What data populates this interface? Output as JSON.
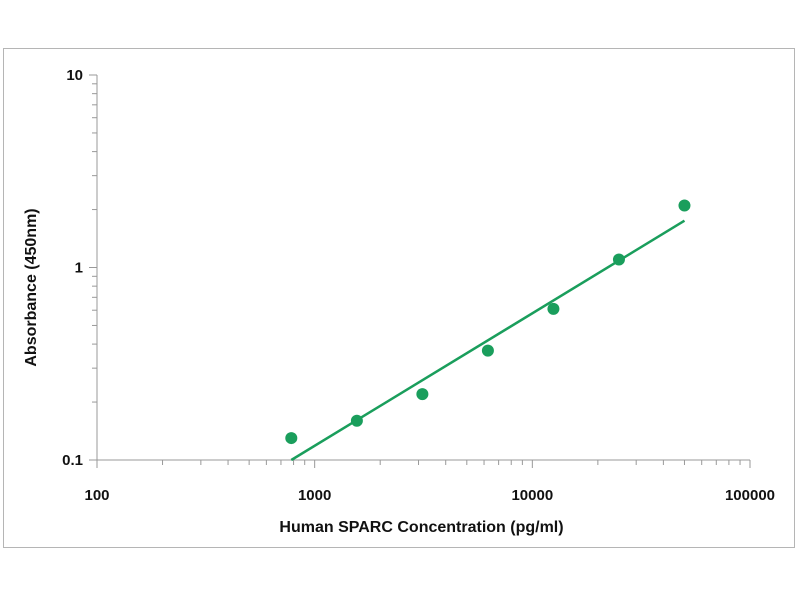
{
  "chart_data": {
    "type": "scatter",
    "title": "",
    "xlabel": "Human SPARC Concentration (pg/ml)",
    "ylabel": "Absorbance (450nm)",
    "x_scale": "log",
    "y_scale": "log",
    "xlim": [
      100,
      100000
    ],
    "ylim": [
      0.1,
      10
    ],
    "x_ticks": [
      "100",
      "1000",
      "10000",
      "100000"
    ],
    "y_ticks": [
      "0.1",
      "1",
      "10"
    ],
    "grid": false,
    "legend": "none",
    "series": [
      {
        "type": "scatter",
        "x": [
          781,
          1563,
          3125,
          6250,
          12500,
          25000,
          50000
        ],
        "y": [
          0.13,
          0.16,
          0.22,
          0.37,
          0.61,
          1.1,
          2.1
        ]
      },
      {
        "type": "line",
        "x": [
          781,
          50000
        ],
        "y": [
          0.1,
          1.75
        ]
      }
    ],
    "colors": {
      "points": "#1a9e5c",
      "fit_line": "#1a9e5c",
      "axis": "#999999",
      "text": "#111111"
    }
  }
}
